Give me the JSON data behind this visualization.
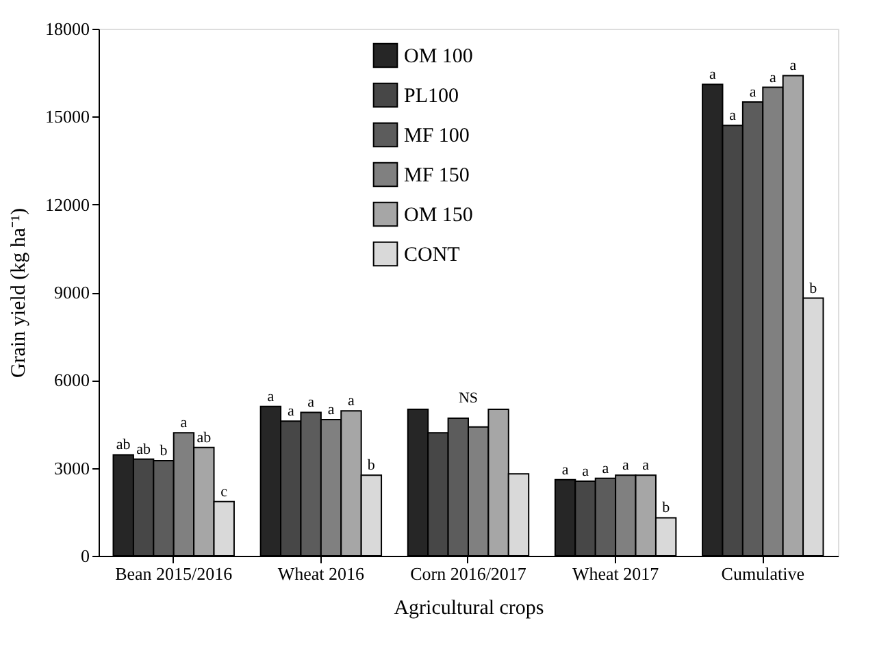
{
  "chart_data": {
    "type": "bar",
    "categories": [
      "Bean 2015/2016",
      "Wheat 2016",
      "Corn 2016/2017",
      "Wheat 2017",
      "Cumulative"
    ],
    "xlabel": "Agricultural crops",
    "ylabel": "Grain yield (kg ha⁻¹)",
    "ylim": [
      0,
      18000
    ],
    "yticks": [
      0,
      3000,
      6000,
      9000,
      12000,
      15000,
      18000
    ],
    "grid": false,
    "legend": "top",
    "series": [
      {
        "name": "OM 100",
        "color": "#262626",
        "values": [
          3450,
          5100,
          5000,
          2600,
          16100
        ],
        "value_labels": [
          "ab",
          "a",
          null,
          "a",
          "a"
        ]
      },
      {
        "name": "PL100",
        "color": "#474747",
        "values": [
          3300,
          4600,
          4200,
          2550,
          14700
        ],
        "value_labels": [
          "ab",
          "a",
          null,
          "a",
          "a"
        ]
      },
      {
        "name": "MF 100",
        "color": "#5c5c5c",
        "values": [
          3250,
          4900,
          4700,
          2650,
          15500
        ],
        "value_labels": [
          "b",
          "a",
          null,
          "a",
          "a"
        ]
      },
      {
        "name": "MF 150",
        "color": "#808080",
        "values": [
          4200,
          4650,
          4400,
          2750,
          16000
        ],
        "value_labels": [
          "a",
          "a",
          null,
          "a",
          "a"
        ]
      },
      {
        "name": "OM 150",
        "color": "#a6a6a6",
        "values": [
          3700,
          4950,
          5000,
          2750,
          16400
        ],
        "value_labels": [
          "ab",
          "a",
          null,
          "a",
          "a"
        ]
      },
      {
        "name": "CONT",
        "color": "#d9d9d9",
        "values": [
          1850,
          2750,
          2800,
          1300,
          8800
        ],
        "value_labels": [
          "c",
          "b",
          null,
          "b",
          "b"
        ]
      }
    ],
    "annotations": [
      "NS"
    ]
  }
}
